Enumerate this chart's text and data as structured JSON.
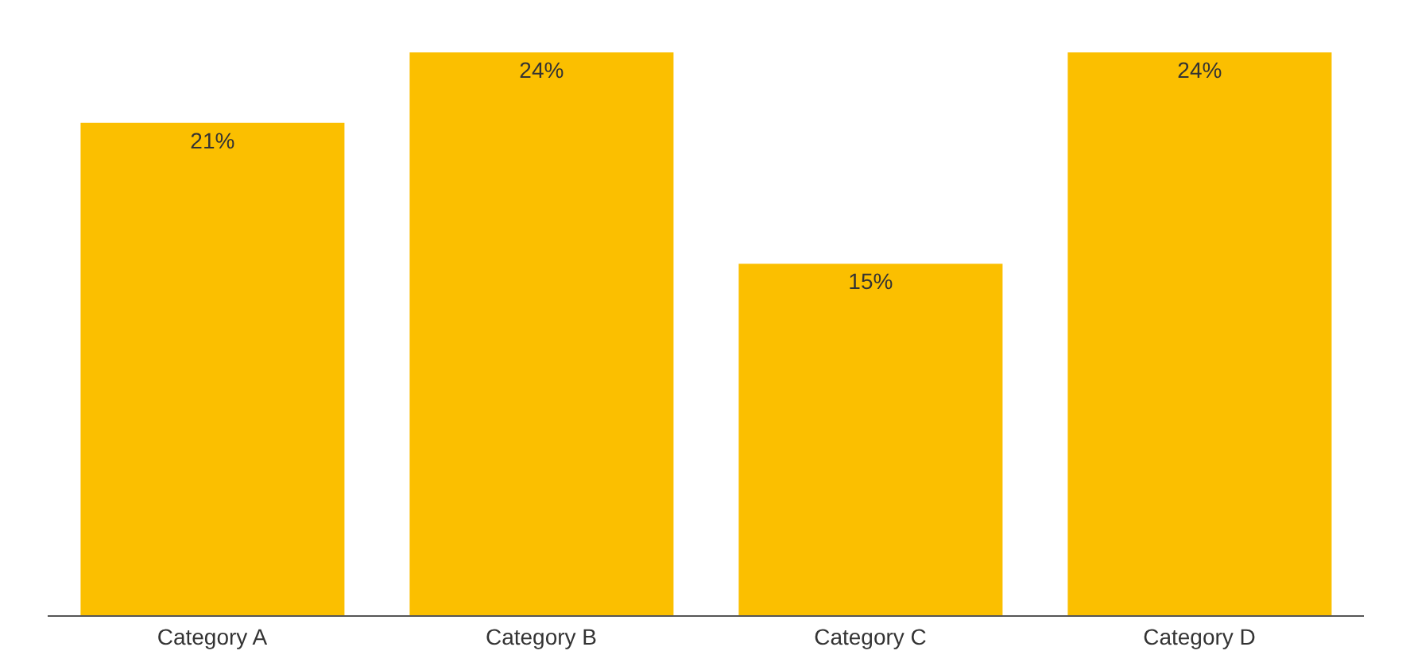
{
  "chart_data": {
    "type": "bar",
    "categories": [
      "Category A",
      "Category B",
      "Category C",
      "Category D"
    ],
    "values": [
      21,
      24,
      15,
      24
    ],
    "value_labels": [
      "21%",
      "24%",
      "15%",
      "24%"
    ],
    "color": "#fbbf00"
  }
}
